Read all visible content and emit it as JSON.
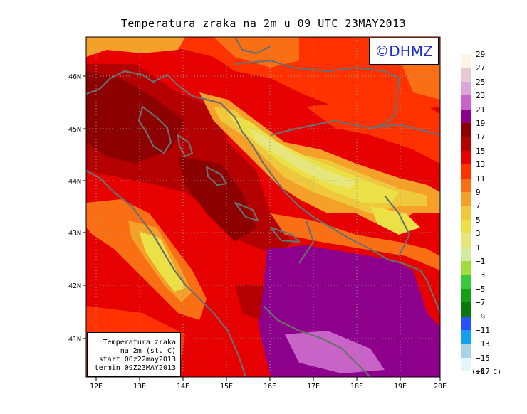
{
  "title": "Temperatura zraka na 2m u 09 UTC 23MAY2013",
  "copyright": "©DHMZ",
  "infobox": {
    "line1": "Temperatura zraka",
    "line2": "na 2m (st. C)",
    "line3": "start 00z22may2013",
    "line4": "termin 09Z23MAY2013"
  },
  "axes": {
    "lat_labels": [
      "46N",
      "45N",
      "44N",
      "43N",
      "42N",
      "41N"
    ],
    "lon_labels": [
      "12E",
      "13E",
      "14E",
      "15E",
      "16E",
      "17E",
      "18E",
      "19E",
      "20E"
    ]
  },
  "colorbar": {
    "levels": [
      {
        "label": "29",
        "color": "#fff4e6"
      },
      {
        "label": "27",
        "color": "#e8c8d2"
      },
      {
        "label": "25",
        "color": "#dca6dc"
      },
      {
        "label": "23",
        "color": "#c864c8"
      },
      {
        "label": "21",
        "color": "#8c008c"
      },
      {
        "label": "19",
        "color": "#8c0000"
      },
      {
        "label": "17",
        "color": "#b40000"
      },
      {
        "label": "15",
        "color": "#e60000"
      },
      {
        "label": "13",
        "color": "#ff3200"
      },
      {
        "label": "11",
        "color": "#fa6e14"
      },
      {
        "label": "9",
        "color": "#f5a028"
      },
      {
        "label": "7",
        "color": "#f0c83c"
      },
      {
        "label": "5",
        "color": "#ebe146"
      },
      {
        "label": "3",
        "color": "#e6e67d"
      },
      {
        "label": "1",
        "color": "#d2eba0"
      },
      {
        "label": "−1",
        "color": "#a0dc3c"
      },
      {
        "label": "−3",
        "color": "#3cc83c"
      },
      {
        "label": "−5",
        "color": "#14a014"
      },
      {
        "label": "−7",
        "color": "#0a780a"
      },
      {
        "label": "−9",
        "color": "#2850ff"
      },
      {
        "label": "−11",
        "color": "#14a0f0"
      },
      {
        "label": "−13",
        "color": "#aad2e6"
      },
      {
        "label": "−15",
        "color": "#e6f5fa"
      },
      {
        "label": "−17",
        "color": "#ffffff"
      }
    ],
    "unit": "(st. C)"
  }
}
